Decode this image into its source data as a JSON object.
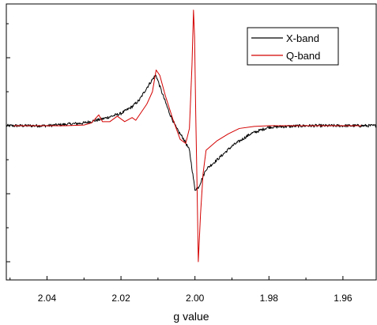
{
  "chart_data": {
    "type": "line",
    "title": "",
    "xlabel": "g value",
    "ylabel": "",
    "x_reversed": true,
    "xlim": [
      2.051,
      1.951
    ],
    "ylim": [
      -1.0,
      1.0
    ],
    "x_ticks": [
      2.04,
      2.02,
      2.0,
      1.98,
      1.96
    ],
    "x_tick_labels": [
      "2.04",
      "2.02",
      "2.00",
      "1.98",
      "1.96"
    ],
    "y_tick_count": 7,
    "y_ticks_labeled": false,
    "grid": false,
    "legend_position": "top-right",
    "series": [
      {
        "name": "X-band",
        "color": "#000000",
        "noisy": true,
        "points": [
          [
            2.051,
            0.0
          ],
          [
            2.045,
            0.0
          ],
          [
            2.04,
            0.0
          ],
          [
            2.035,
            0.01
          ],
          [
            2.03,
            0.02
          ],
          [
            2.025,
            0.05
          ],
          [
            2.02,
            0.09
          ],
          [
            2.017,
            0.14
          ],
          [
            2.015,
            0.19
          ],
          [
            2.013,
            0.28
          ],
          [
            2.011,
            0.36
          ],
          [
            2.0105,
            0.37
          ],
          [
            2.009,
            0.25
          ],
          [
            2.007,
            0.1
          ],
          [
            2.005,
            -0.02
          ],
          [
            2.003,
            -0.1
          ],
          [
            2.0015,
            -0.18
          ],
          [
            2.0,
            -0.47
          ],
          [
            1.999,
            -0.45
          ],
          [
            1.997,
            -0.32
          ],
          [
            1.994,
            -0.25
          ],
          [
            1.99,
            -0.15
          ],
          [
            1.985,
            -0.06
          ],
          [
            1.98,
            -0.01
          ],
          [
            1.97,
            0.0
          ],
          [
            1.96,
            0.0
          ],
          [
            1.951,
            0.0
          ]
        ]
      },
      {
        "name": "Q-band",
        "color": "#d40000",
        "noisy": false,
        "points": [
          [
            2.049,
            0.0
          ],
          [
            2.04,
            0.0
          ],
          [
            2.035,
            0.0
          ],
          [
            2.03,
            0.005
          ],
          [
            2.028,
            0.02
          ],
          [
            2.026,
            0.08
          ],
          [
            2.025,
            0.03
          ],
          [
            2.023,
            0.03
          ],
          [
            2.021,
            0.07
          ],
          [
            2.019,
            0.03
          ],
          [
            2.017,
            0.06
          ],
          [
            2.016,
            0.04
          ],
          [
            2.015,
            0.08
          ],
          [
            2.013,
            0.16
          ],
          [
            2.0115,
            0.25
          ],
          [
            2.0105,
            0.41
          ],
          [
            2.0095,
            0.37
          ],
          [
            2.008,
            0.22
          ],
          [
            2.006,
            0.05
          ],
          [
            2.004,
            -0.1
          ],
          [
            2.0025,
            -0.13
          ],
          [
            2.0015,
            -0.02
          ],
          [
            2.0008,
            0.45
          ],
          [
            2.0004,
            0.85
          ],
          [
            2.0001,
            0.65
          ],
          [
            1.9998,
            0.1
          ],
          [
            1.9994,
            -0.5
          ],
          [
            1.9991,
            -1.0
          ],
          [
            1.9985,
            -0.65
          ],
          [
            1.9978,
            -0.35
          ],
          [
            1.997,
            -0.18
          ],
          [
            1.994,
            -0.11
          ],
          [
            1.991,
            -0.06
          ],
          [
            1.988,
            -0.02
          ],
          [
            1.984,
            -0.005
          ],
          [
            1.98,
            0.0
          ],
          [
            1.96,
            0.0
          ],
          [
            1.955,
            0.0
          ]
        ]
      }
    ]
  }
}
